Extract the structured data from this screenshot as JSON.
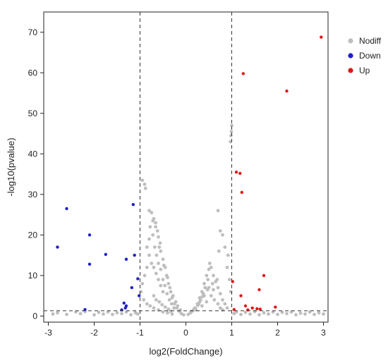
{
  "chart_data": {
    "type": "scatter",
    "title": "",
    "xlabel": "log2(FoldChange)",
    "ylabel": "-log10(pvalue)",
    "xlim": [
      -3.1,
      3.1
    ],
    "ylim": [
      -1.5,
      75
    ],
    "xticks": [
      -3,
      -2,
      -1,
      0,
      1,
      2,
      3
    ],
    "yticks": [
      0,
      10,
      20,
      30,
      40,
      50,
      60,
      70
    ],
    "thresholds": {
      "x": [
        -1,
        1
      ],
      "y": 1.3
    },
    "legend_position": "right-top",
    "grid": false,
    "series": [
      {
        "name": "Nodiff",
        "color": "#bebebe",
        "points": [
          [
            -0.95,
            33.5
          ],
          [
            -0.9,
            32.5
          ],
          [
            -0.88,
            31.5
          ],
          [
            -0.8,
            26
          ],
          [
            -0.75,
            25.5
          ],
          [
            -0.7,
            24
          ],
          [
            -0.66,
            23
          ],
          [
            -0.62,
            21
          ],
          [
            -0.6,
            19.5
          ],
          [
            -0.56,
            18
          ],
          [
            -0.55,
            16
          ],
          [
            -0.5,
            14
          ],
          [
            -0.45,
            12
          ],
          [
            -0.42,
            10
          ],
          [
            -0.38,
            8
          ],
          [
            -0.33,
            6
          ],
          [
            -0.3,
            4.5
          ],
          [
            -0.25,
            3
          ],
          [
            -0.2,
            2
          ],
          [
            -0.15,
            1.2
          ],
          [
            -0.1,
            0.6
          ],
          [
            -0.05,
            0.3
          ],
          [
            -0.72,
            20
          ],
          [
            -0.68,
            17
          ],
          [
            -0.64,
            15
          ],
          [
            -0.6,
            13
          ],
          [
            -0.55,
            11.5
          ],
          [
            -0.5,
            9
          ],
          [
            -0.46,
            7.5
          ],
          [
            -0.41,
            5.5
          ],
          [
            -0.36,
            4
          ],
          [
            -0.31,
            3
          ],
          [
            -0.26,
            2
          ],
          [
            -0.8,
            15
          ],
          [
            -0.75,
            13
          ],
          [
            -0.7,
            12
          ],
          [
            -0.65,
            10.5
          ],
          [
            -0.6,
            9
          ],
          [
            -0.55,
            7.5
          ],
          [
            -0.5,
            6
          ],
          [
            -0.85,
            12
          ],
          [
            -0.9,
            10
          ],
          [
            -0.95,
            8
          ],
          [
            -0.98,
            6
          ],
          [
            -0.92,
            4
          ],
          [
            -0.85,
            3
          ],
          [
            -0.78,
            2.5
          ],
          [
            -0.7,
            2
          ],
          [
            -0.6,
            1.5
          ],
          [
            -0.5,
            1
          ],
          [
            -0.4,
            0.8
          ],
          [
            -0.3,
            0.5
          ],
          [
            -0.7,
            5
          ],
          [
            -0.65,
            4
          ],
          [
            -0.58,
            3.5
          ],
          [
            -0.52,
            2.8
          ],
          [
            -0.45,
            2.2
          ],
          [
            -0.38,
            1.7
          ],
          [
            -0.33,
            1.2
          ],
          [
            -0.85,
            17
          ],
          [
            -0.8,
            19
          ],
          [
            -0.78,
            22
          ],
          [
            -0.72,
            23.5
          ],
          [
            -0.66,
            22
          ],
          [
            -0.58,
            17
          ],
          [
            -0.48,
            12.5
          ],
          [
            -0.4,
            9.5
          ],
          [
            -0.35,
            7
          ],
          [
            -0.28,
            5
          ],
          [
            -0.22,
            3.5
          ],
          [
            -0.18,
            2.5
          ],
          [
            -0.12,
            1.5
          ],
          [
            0.05,
            0.4
          ],
          [
            0.1,
            0.8
          ],
          [
            0.15,
            1.3
          ],
          [
            0.2,
            2
          ],
          [
            0.25,
            3
          ],
          [
            0.3,
            4.5
          ],
          [
            0.35,
            6
          ],
          [
            0.4,
            8
          ],
          [
            0.45,
            10
          ],
          [
            0.5,
            11.5
          ],
          [
            0.52,
            13
          ],
          [
            0.48,
            9
          ],
          [
            0.42,
            7
          ],
          [
            0.38,
            5.5
          ],
          [
            0.32,
            4
          ],
          [
            0.28,
            3
          ],
          [
            0.55,
            12
          ],
          [
            0.6,
            10
          ],
          [
            0.65,
            8.5
          ],
          [
            0.7,
            7
          ],
          [
            0.75,
            5.5
          ],
          [
            0.8,
            4
          ],
          [
            0.85,
            3
          ],
          [
            0.9,
            2
          ],
          [
            0.22,
            1.5
          ],
          [
            0.35,
            2.5
          ],
          [
            0.45,
            3.5
          ],
          [
            0.55,
            5
          ],
          [
            0.6,
            6.5
          ],
          [
            0.62,
            4
          ],
          [
            0.7,
            3
          ],
          [
            0.75,
            2
          ],
          [
            0.8,
            1.5
          ],
          [
            0.5,
            7
          ],
          [
            0.4,
            5
          ],
          [
            0.3,
            3.5
          ],
          [
            0.18,
            1.8
          ],
          [
            0.12,
            1.1
          ],
          [
            0.68,
            9
          ],
          [
            0.58,
            8
          ],
          [
            0.47,
            6.5
          ],
          [
            0.36,
            4.8
          ],
          [
            0.26,
            2.6
          ],
          [
            0.72,
            16
          ],
          [
            0.8,
            20
          ],
          [
            0.85,
            17
          ],
          [
            0.9,
            12
          ],
          [
            0.95,
            9
          ],
          [
            0.98,
            6
          ],
          [
            0.7,
            26
          ],
          [
            0.75,
            21
          ],
          [
            0.92,
            15
          ],
          [
            0.97,
            43
          ],
          [
            0.98,
            44.5
          ],
          [
            0.99,
            45.5
          ],
          [
            1.0,
            47
          ],
          [
            -2.9,
            0.5
          ],
          [
            -2.8,
            0.8
          ],
          [
            -2.6,
            0.4
          ],
          [
            -2.4,
            1.0
          ],
          [
            -2.3,
            0.6
          ],
          [
            -2.2,
            1.1
          ],
          [
            -2.0,
            0.3
          ],
          [
            -1.9,
            0.9
          ],
          [
            -1.8,
            0.5
          ],
          [
            -1.7,
            1.0
          ],
          [
            -1.6,
            0.4
          ],
          [
            -1.5,
            0.8
          ],
          [
            -1.4,
            0.6
          ],
          [
            -1.3,
            1.0
          ],
          [
            -1.2,
            0.3
          ],
          [
            -1.1,
            0.8
          ],
          [
            -1.05,
            0.5
          ],
          [
            1.05,
            0.6
          ],
          [
            1.1,
            1.0
          ],
          [
            1.2,
            0.4
          ],
          [
            1.3,
            0.9
          ],
          [
            1.4,
            0.5
          ],
          [
            1.5,
            1.1
          ],
          [
            1.6,
            0.3
          ],
          [
            1.7,
            0.8
          ],
          [
            1.8,
            0.5
          ],
          [
            1.9,
            1.0
          ],
          [
            2.0,
            0.4
          ],
          [
            2.1,
            0.9
          ],
          [
            2.2,
            0.6
          ],
          [
            2.3,
            1.0
          ],
          [
            2.4,
            0.3
          ],
          [
            2.5,
            0.7
          ],
          [
            2.6,
            0.5
          ],
          [
            2.7,
            1.0
          ],
          [
            2.8,
            0.4
          ],
          [
            2.9,
            0.8
          ],
          [
            3.0,
            0.5
          ]
        ]
      },
      {
        "name": "Down",
        "color": "#1f1fcc",
        "points": [
          [
            -2.6,
            26.5
          ],
          [
            -2.1,
            20
          ],
          [
            -2.8,
            17
          ],
          [
            -1.75,
            15.2
          ],
          [
            -2.1,
            12.8
          ],
          [
            -1.15,
            27.5
          ],
          [
            -1.12,
            15
          ],
          [
            -1.3,
            14
          ],
          [
            -1.05,
            9.2
          ],
          [
            -1.18,
            7
          ],
          [
            -1.02,
            5
          ],
          [
            -1.35,
            3.2
          ],
          [
            -1.3,
            2.5
          ],
          [
            -1.32,
            2.0
          ],
          [
            -1.4,
            1.5
          ],
          [
            -2.2,
            1.6
          ]
        ]
      },
      {
        "name": "Up",
        "color": "#e01818",
        "points": [
          [
            2.95,
            68.8
          ],
          [
            1.25,
            59.8
          ],
          [
            2.2,
            55.5
          ],
          [
            1.1,
            35.5
          ],
          [
            1.18,
            35.2
          ],
          [
            1.22,
            30.5
          ],
          [
            1.7,
            10
          ],
          [
            1.02,
            8.5
          ],
          [
            1.2,
            5
          ],
          [
            1.6,
            6.5
          ],
          [
            1.3,
            2.5
          ],
          [
            1.45,
            2.0
          ],
          [
            1.55,
            1.8
          ],
          [
            1.62,
            1.7
          ],
          [
            1.95,
            2.2
          ],
          [
            1.05,
            1.6
          ],
          [
            1.35,
            1.5
          ]
        ]
      }
    ]
  }
}
